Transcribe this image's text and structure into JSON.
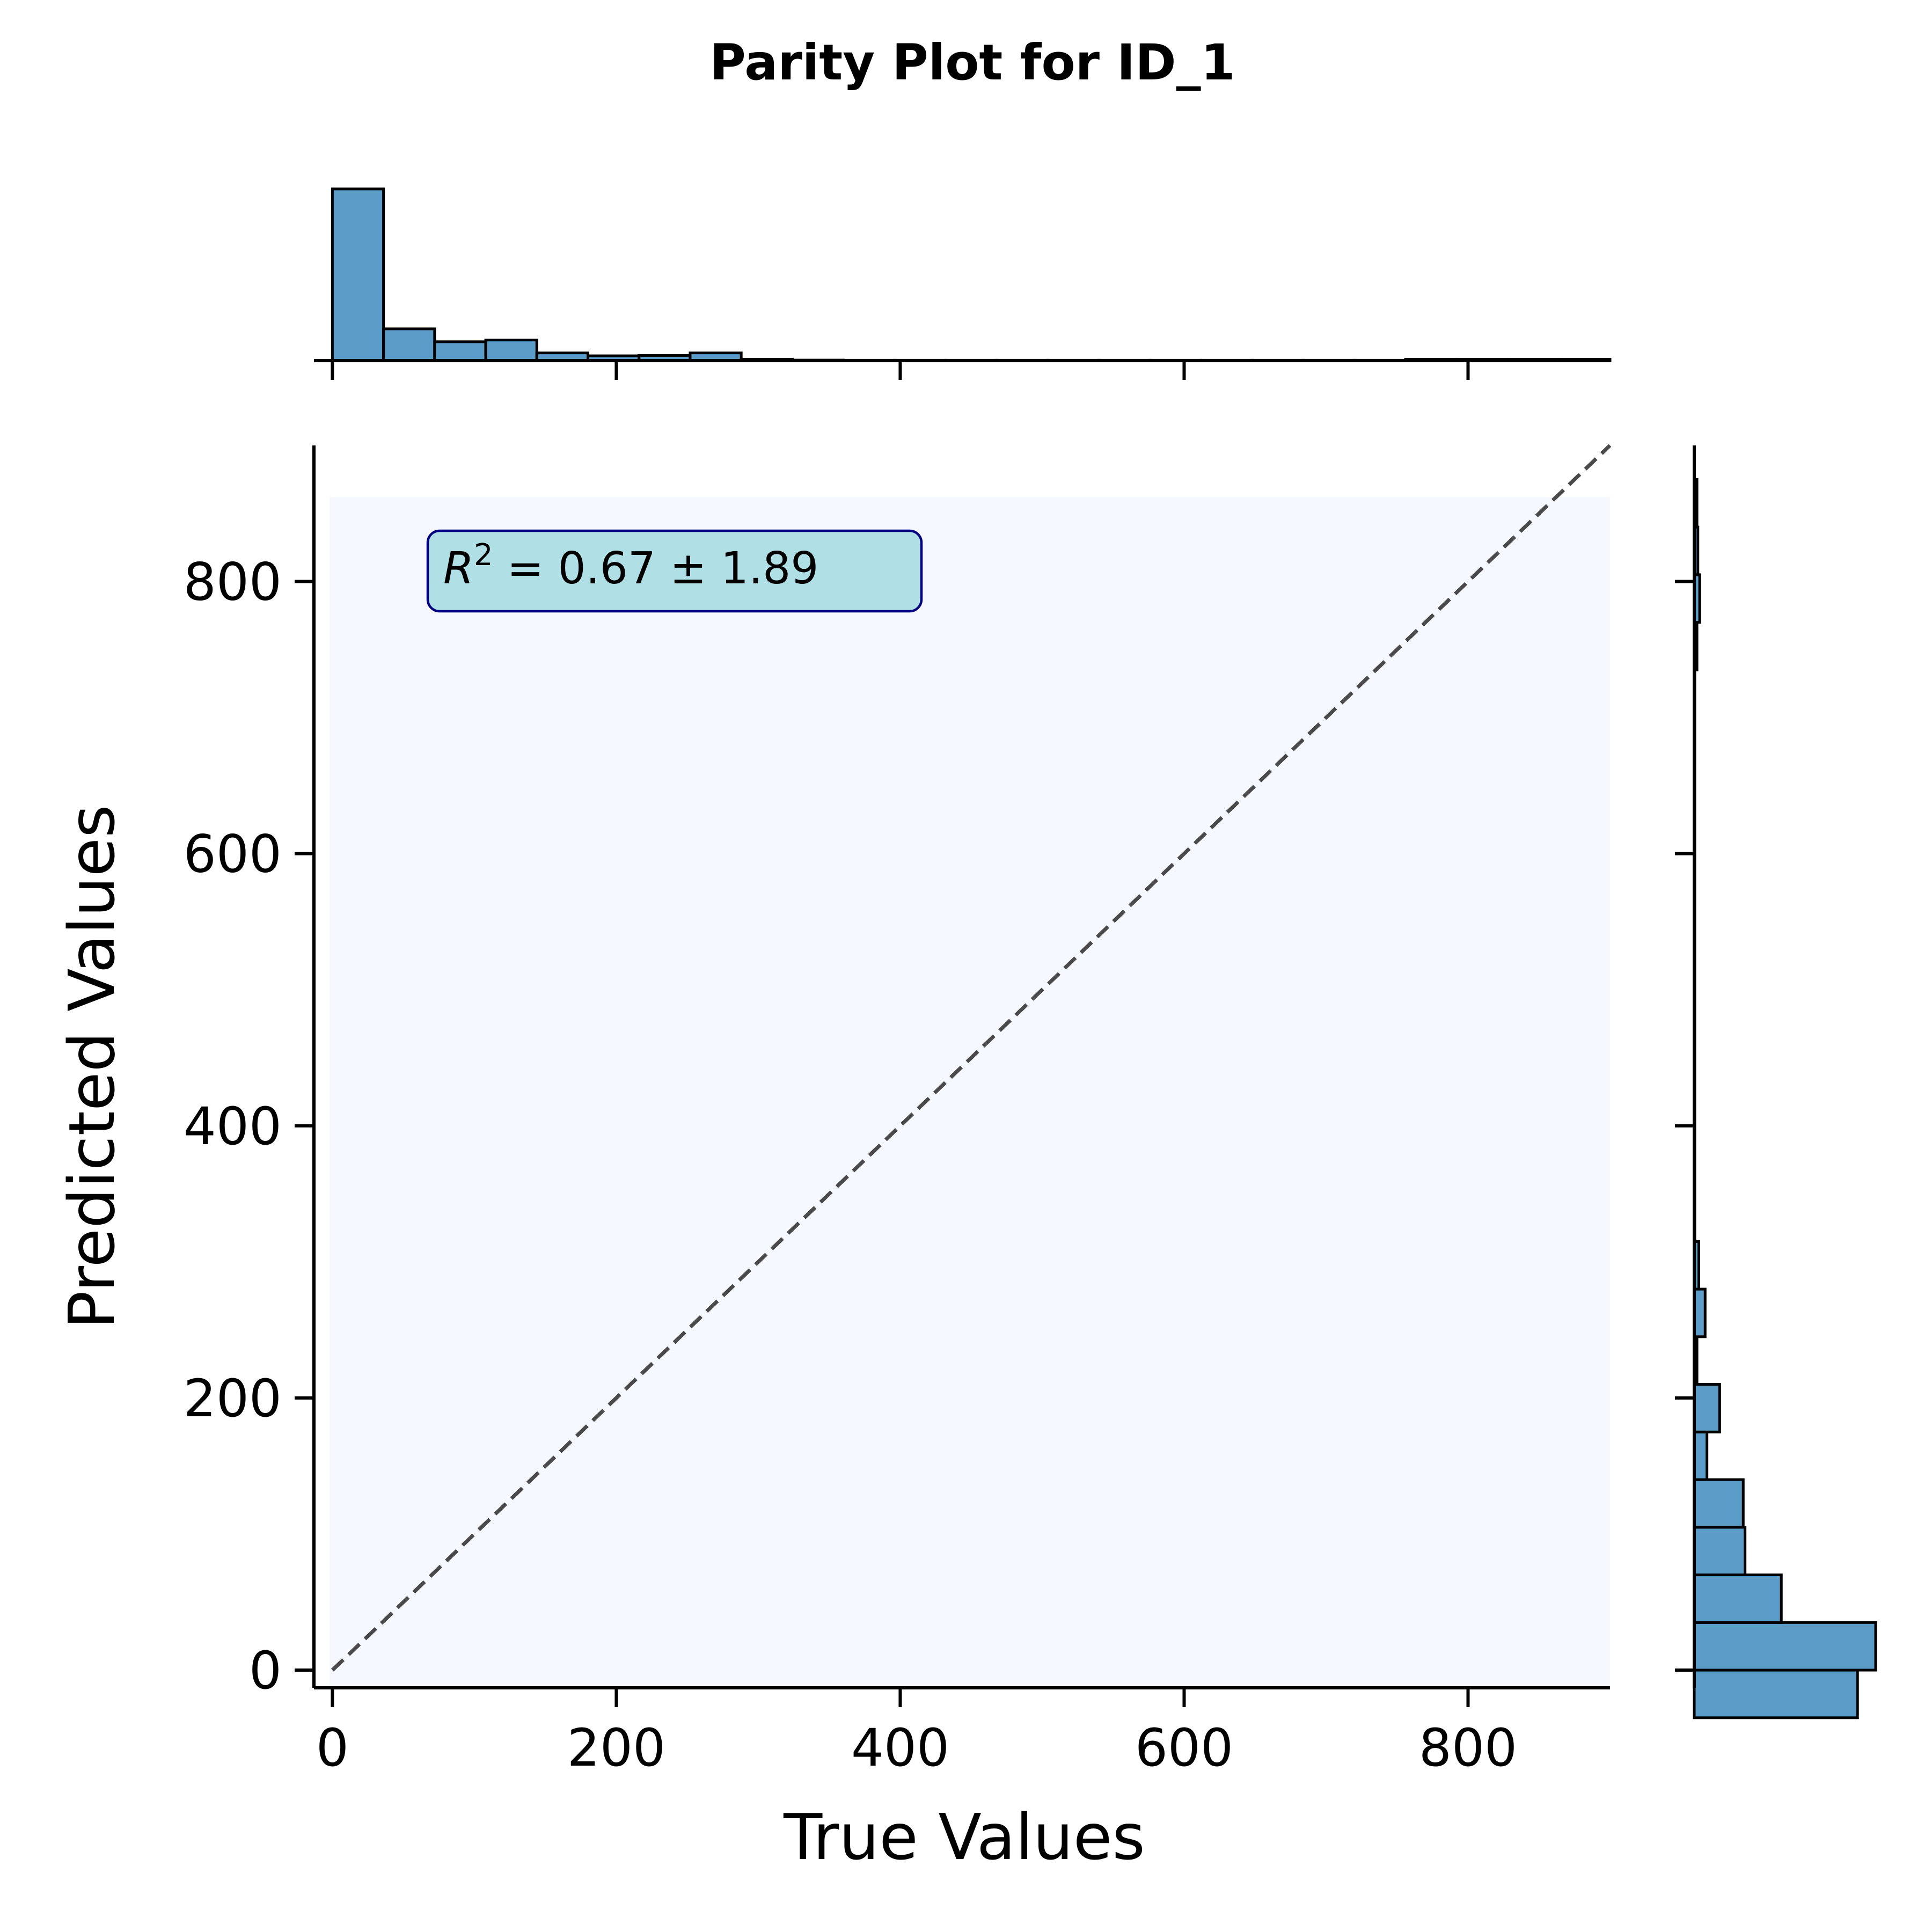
{
  "chart_data": {
    "type": "scatter",
    "title": "Parity Plot for ID_1",
    "xlabel": "True Values",
    "ylabel": "Predicted Values",
    "xlim": [
      -13,
      900
    ],
    "ylim": [
      -13,
      900
    ],
    "x_ticks": [
      0,
      200,
      400,
      600,
      800
    ],
    "y_ticks": [
      0,
      200,
      400,
      600,
      800
    ],
    "x_tick_labels": [
      "0",
      "200",
      "400",
      "600",
      "800"
    ],
    "y_tick_labels": [
      "0",
      "200",
      "400",
      "600",
      "800"
    ],
    "annotation": {
      "prefix": "R",
      "superscript": "2",
      "text": " = 0.67 ± 1.89"
    },
    "parity_line": {
      "from": [
        0,
        0
      ],
      "to": [
        900,
        900
      ],
      "style": "dashed"
    },
    "density_region": {
      "x": [
        -2,
        900
      ],
      "y": [
        -13,
        862
      ]
    },
    "grid": false,
    "colors": {
      "hist_fill": "#5a9bc8",
      "hist_edge": "#000000",
      "parity_line": "#4a4a4a",
      "density_background": "#f5f9ff",
      "annotation_fill": "#b0e0e6",
      "annotation_edge": "#000080"
    },
    "marginal_x": {
      "bin_edges": [
        0,
        36,
        72,
        108,
        144,
        180,
        216,
        252,
        288,
        324,
        360,
        396,
        432,
        468,
        504,
        540,
        576,
        612,
        648,
        684,
        720,
        756,
        792,
        828,
        864,
        900
      ],
      "counts": [
        100,
        18.5,
        11,
        12,
        4.5,
        2.8,
        3,
        4.5,
        0.8,
        0.3,
        0.2,
        0.2,
        0.2,
        0.2,
        0.2,
        0.2,
        0.2,
        0.2,
        0.2,
        0.2,
        0.2,
        0.8,
        0.8,
        0.8,
        0.8
      ]
    },
    "marginal_y": {
      "bin_edges": [
        -35,
        0,
        35,
        70,
        105,
        140,
        175,
        210,
        245,
        280,
        315,
        350,
        385,
        420,
        455,
        490,
        525,
        560,
        595,
        630,
        665,
        700,
        735,
        770,
        805,
        840,
        875
      ],
      "counts": [
        90,
        100,
        48,
        28,
        27,
        7,
        14,
        1.5,
        6,
        2.5,
        0.3,
        0.3,
        0.3,
        0.3,
        0.3,
        0.3,
        0.3,
        0.3,
        0.3,
        0.3,
        0.3,
        0.3,
        1.5,
        3,
        2,
        1.5
      ]
    }
  }
}
